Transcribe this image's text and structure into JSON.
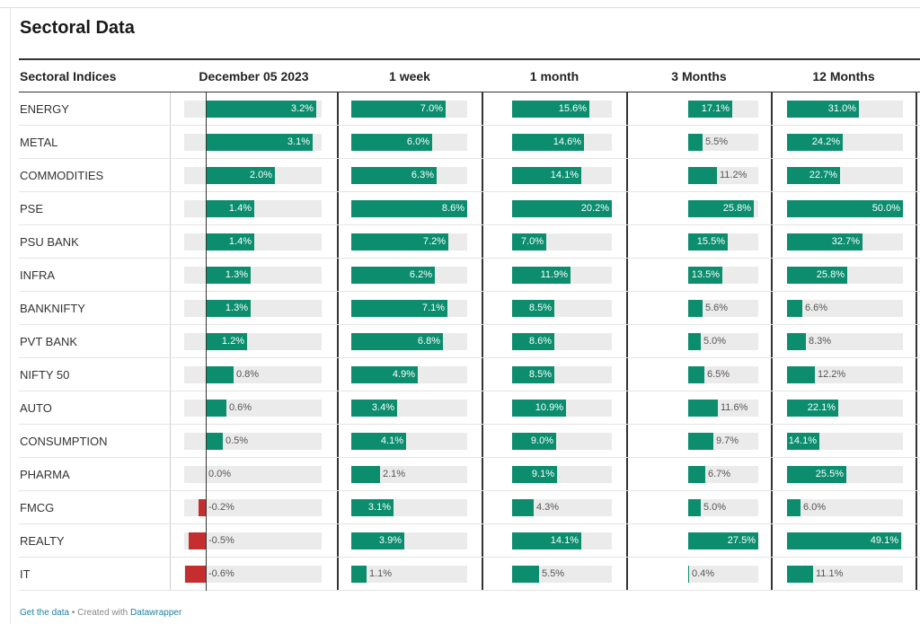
{
  "title": "Sectoral Data",
  "colors": {
    "positive": "#0b8d6e",
    "negative": "#c42e2e",
    "track": "#ebebeb"
  },
  "footer": {
    "get_data": "Get the data",
    "separator": " • Created with ",
    "tool": "Datawrapper"
  },
  "chart_data": {
    "type": "table",
    "row_header": "Sectoral Indices",
    "columns": [
      "December 05 2023",
      "1 week",
      "1 month",
      "3 Months",
      "12 Months"
    ],
    "column_ranges": [
      [
        -0.6,
        3.2
      ],
      [
        0,
        8.6
      ],
      [
        0,
        20.2
      ],
      [
        0,
        27.5
      ],
      [
        0,
        50.0
      ]
    ],
    "rows": [
      {
        "name": "ENERGY",
        "values": [
          3.2,
          7.0,
          15.6,
          17.1,
          31.0
        ]
      },
      {
        "name": "METAL",
        "values": [
          3.1,
          6.0,
          14.6,
          5.5,
          24.2
        ]
      },
      {
        "name": "COMMODITIES",
        "values": [
          2.0,
          6.3,
          14.1,
          11.2,
          22.7
        ]
      },
      {
        "name": "PSE",
        "values": [
          1.4,
          8.6,
          20.2,
          25.8,
          50.0
        ]
      },
      {
        "name": "PSU BANK",
        "values": [
          1.4,
          7.2,
          7.0,
          15.5,
          32.7
        ]
      },
      {
        "name": "INFRA",
        "values": [
          1.3,
          6.2,
          11.9,
          13.5,
          25.8
        ]
      },
      {
        "name": "BANKNIFTY",
        "values": [
          1.3,
          7.1,
          8.5,
          5.6,
          6.6
        ]
      },
      {
        "name": "PVT BANK",
        "values": [
          1.2,
          6.8,
          8.6,
          5.0,
          8.3
        ]
      },
      {
        "name": "NIFTY 50",
        "values": [
          0.8,
          4.9,
          8.5,
          6.5,
          12.2
        ]
      },
      {
        "name": "AUTO",
        "values": [
          0.6,
          3.4,
          10.9,
          11.6,
          22.1
        ]
      },
      {
        "name": "CONSUMPTION",
        "values": [
          0.5,
          4.1,
          9.0,
          9.7,
          14.1
        ]
      },
      {
        "name": "PHARMA",
        "values": [
          0.0,
          2.1,
          9.1,
          6.7,
          25.5
        ]
      },
      {
        "name": "FMCG",
        "values": [
          -0.2,
          3.1,
          4.3,
          5.0,
          6.0
        ]
      },
      {
        "name": "REALTY",
        "values": [
          -0.5,
          3.9,
          14.1,
          27.5,
          49.1
        ]
      },
      {
        "name": "IT",
        "values": [
          -0.6,
          1.1,
          5.5,
          0.4,
          11.1
        ]
      }
    ],
    "labels": [
      [
        "3.2%",
        "7.0%",
        "15.6%",
        "17.1%",
        "31.0%"
      ],
      [
        "3.1%",
        "6.0%",
        "14.6%",
        "5.5%",
        "24.2%"
      ],
      [
        "2.0%",
        "6.3%",
        "14.1%",
        "11.2%",
        "22.7%"
      ],
      [
        "1.4%",
        "8.6%",
        "20.2%",
        "25.8%",
        "50.0%"
      ],
      [
        "1.4%",
        "7.2%",
        "7.0%",
        "15.5%",
        "32.7%"
      ],
      [
        "1.3%",
        "6.2%",
        "11.9%",
        "13.5%",
        "25.8%"
      ],
      [
        "1.3%",
        "7.1%",
        "8.5%",
        "5.6%",
        "6.6%"
      ],
      [
        "1.2%",
        "6.8%",
        "8.6%",
        "5.0%",
        "8.3%"
      ],
      [
        "0.8%",
        "4.9%",
        "8.5%",
        "6.5%",
        "12.2%"
      ],
      [
        "0.6%",
        "3.4%",
        "10.9%",
        "11.6%",
        "22.1%"
      ],
      [
        "0.5%",
        "4.1%",
        "9.0%",
        "9.7%",
        "14.1%"
      ],
      [
        "0.0%",
        "2.1%",
        "9.1%",
        "6.7%",
        "25.5%"
      ],
      [
        "-0.2%",
        "3.1%",
        "4.3%",
        "5.0%",
        "6.0%"
      ],
      [
        "-0.5%",
        "3.9%",
        "14.1%",
        "27.5%",
        "49.1%"
      ],
      [
        "-0.6%",
        "1.1%",
        "5.5%",
        "0.4%",
        "11.1%"
      ]
    ]
  }
}
